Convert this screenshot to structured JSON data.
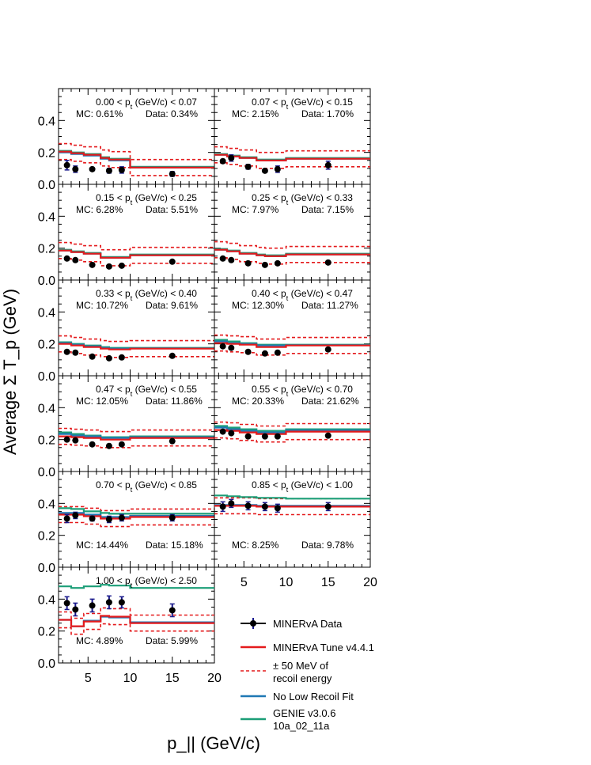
{
  "chart_data": {
    "type": "step",
    "ylabel": "Average Σ T_p (GeV)",
    "xlabel": "p_|| (GeV/c)",
    "xlim": [
      1.5,
      20
    ],
    "x_ticks": [
      5,
      10,
      15,
      20
    ],
    "x_tick_labels": [
      "5",
      "10",
      "15",
      "20"
    ],
    "y_ticks": [
      0.0,
      0.2,
      0.4
    ],
    "y_tick_labels": [
      "0.0",
      "0.2",
      "0.4"
    ],
    "bin_edges": [
      1.5,
      3,
      4.5,
      6.5,
      7.5,
      8.5,
      10,
      20
    ],
    "data_x": [
      2.5,
      3.5,
      5.5,
      7.5,
      9,
      15
    ],
    "legend": {
      "data": "MINERvA Data",
      "tune": "MINERvA Tune v4.4.1",
      "band_line1": "± 50 MeV of",
      "band_line2": "recoil energy",
      "nolow": "No Low Recoil Fit",
      "genie_line1": "GENIE v3.0.6",
      "genie_line2": "10a_02_11a"
    },
    "colors": {
      "data": "#000000",
      "data_error": "#1a1a8c",
      "tune": "#e41a1c",
      "band": "#e41a1c",
      "nolow": "#1f78b4",
      "genie": "#1b9e77"
    },
    "panels": [
      {
        "id": "p1",
        "range_low": "0.00",
        "range_high": "0.07",
        "mc_text": "MC: 0.61%",
        "data_text": "Data: 0.34%",
        "text_pos": "top",
        "ylim": [
          0,
          0.6
        ],
        "tune": [
          0.205,
          0.195,
          0.185,
          0.165,
          0.155,
          0.155,
          0.105
        ],
        "genie": [
          0.21,
          0.2,
          0.19,
          0.17,
          0.16,
          0.16,
          0.11
        ],
        "nolow": [
          0.2,
          0.19,
          0.18,
          0.16,
          0.15,
          0.15,
          0.105
        ],
        "data_y": [
          0.12,
          0.095,
          0.095,
          0.085,
          0.09,
          0.065
        ],
        "data_err": [
          0.03,
          0.02,
          0.01,
          0.015,
          0.02,
          0.015
        ]
      },
      {
        "id": "p2",
        "range_low": "0.07",
        "range_high": "0.15",
        "mc_text": "MC: 2.15%",
        "data_text": "Data: 1.70%",
        "text_pos": "top",
        "ylim": [
          0,
          0.6
        ],
        "tune": [
          0.185,
          0.175,
          0.165,
          0.15,
          0.15,
          0.15,
          0.16
        ],
        "genie": [
          0.19,
          0.18,
          0.17,
          0.155,
          0.155,
          0.155,
          0.165
        ],
        "nolow": [
          0.185,
          0.175,
          0.165,
          0.15,
          0.15,
          0.15,
          0.16
        ],
        "data_y": [
          0.145,
          0.165,
          0.11,
          0.085,
          0.095,
          0.12
        ],
        "data_err": [
          0.01,
          0.02,
          0.015,
          0.01,
          0.02,
          0.025
        ]
      },
      {
        "id": "p3",
        "range_low": "0.15",
        "range_high": "0.25",
        "mc_text": "MC: 6.28%",
        "data_text": "Data: 5.51%",
        "text_pos": "top",
        "ylim": [
          0,
          0.6
        ],
        "tune": [
          0.185,
          0.175,
          0.165,
          0.14,
          0.14,
          0.14,
          0.155
        ],
        "genie": [
          0.19,
          0.18,
          0.17,
          0.145,
          0.145,
          0.145,
          0.16
        ],
        "nolow": [
          0.185,
          0.175,
          0.165,
          0.14,
          0.14,
          0.14,
          0.155
        ],
        "data_y": [
          0.135,
          0.125,
          0.095,
          0.085,
          0.09,
          0.115
        ],
        "data_err": [
          0.005,
          0.005,
          0.005,
          0.005,
          0.005,
          0.008
        ]
      },
      {
        "id": "p4",
        "range_low": "0.25",
        "range_high": "0.33",
        "mc_text": "MC: 7.97%",
        "data_text": "Data: 7.15%",
        "text_pos": "top",
        "ylim": [
          0,
          0.6
        ],
        "tune": [
          0.19,
          0.18,
          0.165,
          0.155,
          0.15,
          0.15,
          0.16
        ],
        "genie": [
          0.195,
          0.185,
          0.17,
          0.16,
          0.155,
          0.155,
          0.165
        ],
        "nolow": [
          0.19,
          0.18,
          0.165,
          0.155,
          0.15,
          0.15,
          0.16
        ],
        "data_y": [
          0.135,
          0.125,
          0.105,
          0.095,
          0.105,
          0.11
        ],
        "data_err": [
          0.005,
          0.005,
          0.005,
          0.005,
          0.005,
          0.005
        ]
      },
      {
        "id": "p5",
        "range_low": "0.33",
        "range_high": "0.40",
        "mc_text": "MC: 10.72%",
        "data_text": "Data: 9.61%",
        "text_pos": "top",
        "ylim": [
          0,
          0.6
        ],
        "tune": [
          0.2,
          0.19,
          0.18,
          0.17,
          0.165,
          0.165,
          0.17
        ],
        "genie": [
          0.21,
          0.2,
          0.19,
          0.18,
          0.175,
          0.175,
          0.175
        ],
        "nolow": [
          0.205,
          0.195,
          0.185,
          0.175,
          0.17,
          0.17,
          0.172
        ],
        "data_y": [
          0.15,
          0.145,
          0.12,
          0.11,
          0.115,
          0.125
        ],
        "data_err": [
          0.005,
          0.005,
          0.005,
          0.005,
          0.005,
          0.005
        ]
      },
      {
        "id": "p6",
        "range_low": "0.40",
        "range_high": "0.47",
        "mc_text": "MC: 12.30%",
        "data_text": "Data: 11.27%",
        "text_pos": "top",
        "ylim": [
          0,
          0.6
        ],
        "tune": [
          0.205,
          0.2,
          0.195,
          0.18,
          0.18,
          0.18,
          0.19
        ],
        "genie": [
          0.225,
          0.215,
          0.205,
          0.195,
          0.195,
          0.195,
          0.195
        ],
        "nolow": [
          0.215,
          0.205,
          0.2,
          0.19,
          0.19,
          0.19,
          0.192
        ],
        "data_y": [
          0.185,
          0.175,
          0.15,
          0.14,
          0.145,
          0.165
        ],
        "data_err": [
          0.005,
          0.005,
          0.005,
          0.005,
          0.005,
          0.005
        ]
      },
      {
        "id": "p7",
        "range_low": "0.47",
        "range_high": "0.55",
        "mc_text": "MC: 12.05%",
        "data_text": "Data: 11.86%",
        "text_pos": "top",
        "ylim": [
          0,
          0.6
        ],
        "tune": [
          0.22,
          0.215,
          0.21,
          0.2,
          0.2,
          0.2,
          0.21
        ],
        "genie": [
          0.245,
          0.235,
          0.225,
          0.215,
          0.215,
          0.215,
          0.22
        ],
        "nolow": [
          0.235,
          0.225,
          0.22,
          0.21,
          0.21,
          0.21,
          0.215
        ],
        "data_y": [
          0.2,
          0.195,
          0.17,
          0.16,
          0.17,
          0.19
        ],
        "data_err": [
          0.005,
          0.005,
          0.005,
          0.005,
          0.005,
          0.005
        ]
      },
      {
        "id": "p8",
        "range_low": "0.55",
        "range_high": "0.70",
        "mc_text": "MC: 20.33%",
        "data_text": "Data: 21.62%",
        "text_pos": "top",
        "ylim": [
          0,
          0.6
        ],
        "tune": [
          0.26,
          0.255,
          0.245,
          0.235,
          0.235,
          0.235,
          0.25
        ],
        "genie": [
          0.285,
          0.275,
          0.265,
          0.255,
          0.255,
          0.255,
          0.265
        ],
        "nolow": [
          0.275,
          0.265,
          0.255,
          0.245,
          0.245,
          0.245,
          0.258
        ],
        "data_y": [
          0.25,
          0.24,
          0.22,
          0.22,
          0.22,
          0.225
        ],
        "data_err": [
          0.005,
          0.005,
          0.005,
          0.005,
          0.005,
          0.005
        ]
      },
      {
        "id": "p9",
        "range_low": "0.70",
        "range_high": "0.85",
        "mc_text": "MC: 14.44%",
        "data_text": "Data: 15.18%",
        "text_pos": "bottom",
        "ylim": [
          0,
          0.6
        ],
        "tune": [
          0.33,
          0.33,
          0.32,
          0.305,
          0.305,
          0.305,
          0.315
        ],
        "genie": [
          0.37,
          0.365,
          0.35,
          0.34,
          0.335,
          0.335,
          0.335
        ],
        "nolow": [
          0.34,
          0.34,
          0.33,
          0.315,
          0.315,
          0.315,
          0.322
        ],
        "data_y": [
          0.305,
          0.325,
          0.305,
          0.3,
          0.31,
          0.31
        ],
        "data_err": [
          0.025,
          0.02,
          0.015,
          0.02,
          0.02,
          0.02
        ]
      },
      {
        "id": "p10",
        "range_low": "0.85",
        "range_high": "1.00",
        "mc_text": "MC: 8.25%",
        "data_text": "Data: 9.78%",
        "text_pos": "bottom",
        "ylim": [
          0,
          0.6
        ],
        "tune": [
          0.385,
          0.385,
          0.385,
          0.38,
          0.38,
          0.38,
          0.38
        ],
        "genie": [
          0.45,
          0.445,
          0.44,
          0.435,
          0.435,
          0.435,
          0.43
        ],
        "nolow": [
          0.39,
          0.39,
          0.39,
          0.385,
          0.385,
          0.385,
          0.385
        ],
        "data_y": [
          0.38,
          0.4,
          0.385,
          0.38,
          0.37,
          0.38
        ],
        "data_err": [
          0.03,
          0.025,
          0.025,
          0.025,
          0.025,
          0.025
        ]
      },
      {
        "id": "p11",
        "range_low": "1.00",
        "range_high": "2.50",
        "mc_text": "MC: 4.89%",
        "data_text": "Data: 5.99%",
        "text_pos": "bottom",
        "ylim": [
          0,
          0.6
        ],
        "tune": [
          0.27,
          0.23,
          0.26,
          0.295,
          0.29,
          0.29,
          0.25
        ],
        "genie": [
          0.48,
          0.47,
          0.48,
          0.49,
          0.485,
          0.485,
          0.47
        ],
        "nolow": [
          0.27,
          0.23,
          0.265,
          0.29,
          0.285,
          0.285,
          0.255
        ],
        "data_y": [
          0.375,
          0.335,
          0.36,
          0.38,
          0.38,
          0.33
        ],
        "data_err": [
          0.04,
          0.04,
          0.04,
          0.04,
          0.035,
          0.04
        ]
      }
    ]
  }
}
